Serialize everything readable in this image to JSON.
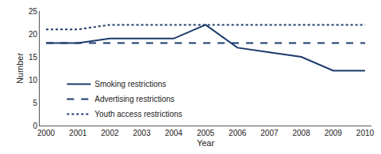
{
  "chart_data": {
    "type": "line",
    "x": [
      2000,
      2001,
      2002,
      2003,
      2004,
      2005,
      2006,
      2007,
      2008,
      2009,
      2010
    ],
    "series": [
      {
        "name": "Smoking restrictions",
        "color": "#1a3a6b",
        "line_style": "solid",
        "values": [
          18,
          18,
          19,
          19,
          19,
          22,
          17,
          16,
          15,
          12,
          12
        ]
      },
      {
        "name": "Advertising restrictions",
        "color": "#1a3a6b",
        "line_style": "dash",
        "values": [
          18,
          18,
          18,
          18,
          18,
          18,
          18,
          18,
          18,
          18,
          18
        ]
      },
      {
        "name": "Youth access restrictions",
        "color": "#1a3a6b",
        "line_style": "dot",
        "values": [
          21,
          21,
          22,
          22,
          22,
          22,
          22,
          22,
          22,
          22,
          22
        ]
      }
    ],
    "xlabel": "Year",
    "ylabel": "Number",
    "xlim": [
      1999.8,
      2010.2
    ],
    "xticks": [
      2000,
      2001,
      2002,
      2003,
      2004,
      2005,
      2006,
      2007,
      2008,
      2009,
      2010
    ],
    "ylim": [
      0,
      25
    ],
    "yticks": [
      0,
      5,
      10,
      15,
      20,
      25
    ],
    "grid": false,
    "legend": "lower left"
  }
}
